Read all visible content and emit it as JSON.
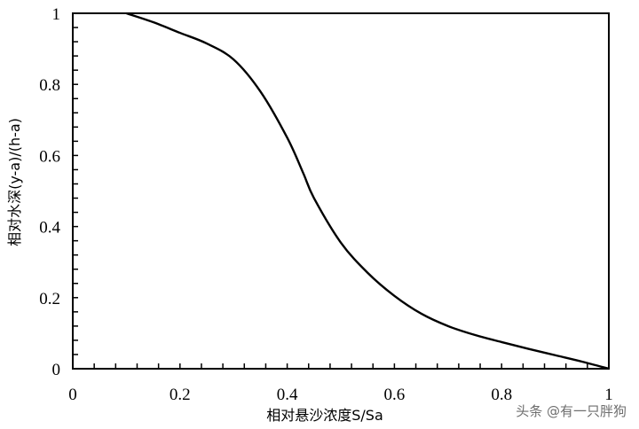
{
  "chart_data": {
    "type": "line",
    "xlabel": "相对悬沙浓度S/Sa",
    "ylabel": "相对水深(y-a)/(h-a)",
    "xlim": [
      0,
      1
    ],
    "ylim": [
      0,
      1
    ],
    "x_ticks": [
      "0",
      "0.2",
      "0.4",
      "0.6",
      "0.8",
      "1"
    ],
    "y_ticks": [
      "0",
      "0.2",
      "0.4",
      "0.6",
      "0.8",
      "1"
    ],
    "grid": false,
    "legend": "none",
    "series": [
      {
        "color": "#000000",
        "points": [
          [
            1.0,
            0.0
          ],
          [
            0.95,
            0.02
          ],
          [
            0.9,
            0.038
          ],
          [
            0.85,
            0.056
          ],
          [
            0.8,
            0.075
          ],
          [
            0.75,
            0.095
          ],
          [
            0.7,
            0.12
          ],
          [
            0.65,
            0.155
          ],
          [
            0.6,
            0.205
          ],
          [
            0.55,
            0.27
          ],
          [
            0.5,
            0.355
          ],
          [
            0.45,
            0.48
          ],
          [
            0.43,
            0.55
          ],
          [
            0.4,
            0.65
          ],
          [
            0.35,
            0.78
          ],
          [
            0.3,
            0.87
          ],
          [
            0.25,
            0.915
          ],
          [
            0.2,
            0.945
          ],
          [
            0.15,
            0.975
          ],
          [
            0.1,
            1.0
          ]
        ]
      }
    ]
  },
  "watermark": "头条 @有一只胖狗"
}
